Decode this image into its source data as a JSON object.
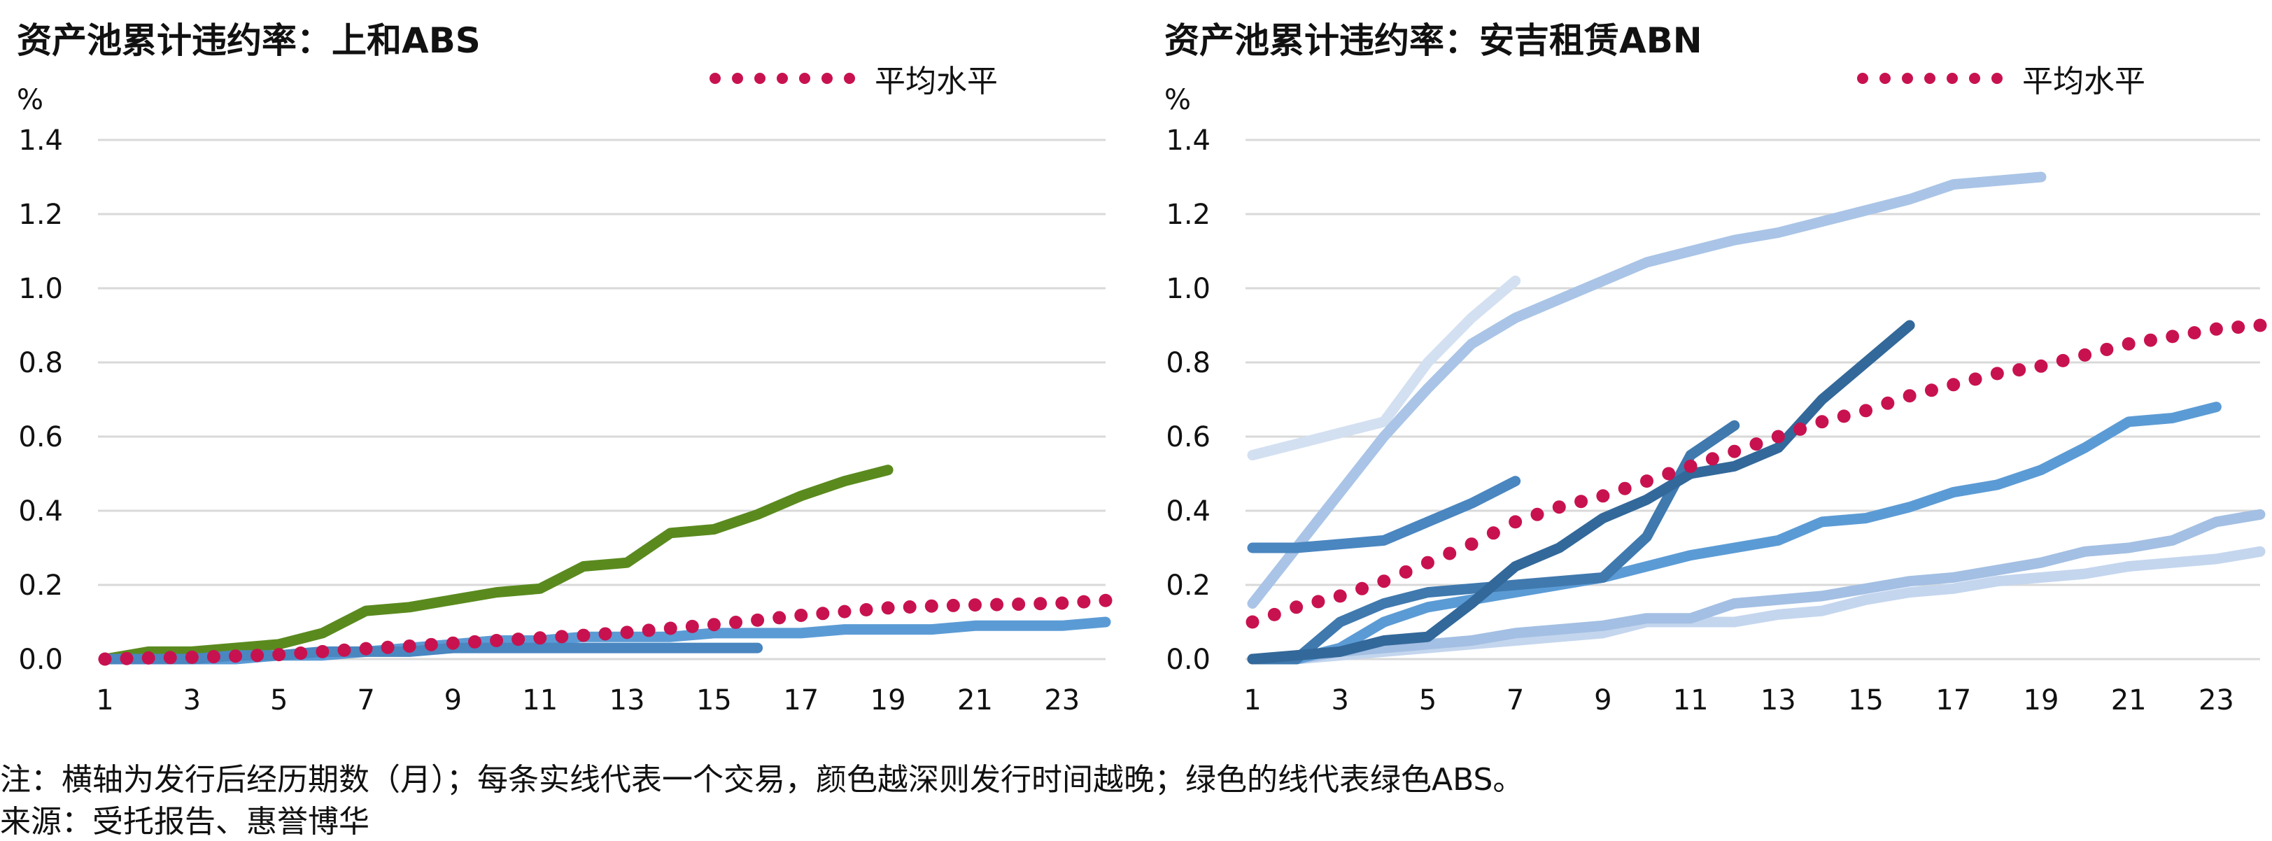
{
  "note": "注：横轴为发行后经历期数（月）；每条实线代表一个交易，颜色越深则发行时间越晚；绿色的线代表绿色ABS。",
  "source": "来源：受托报告、惠誉博华",
  "colors": {
    "average": "#C8124F",
    "green": "#5A8A1E",
    "grid": "#D9D9D9"
  },
  "chart_data": [
    {
      "type": "line",
      "title": "资产池累计违约率：上和ABS",
      "unit_label": "%",
      "legend": {
        "label": "平均水平",
        "placement": "top-right"
      },
      "ylim": [
        0,
        1.4
      ],
      "yticks": [
        "0.0",
        "0.2",
        "0.4",
        "0.6",
        "0.8",
        "1.0",
        "1.2",
        "1.4"
      ],
      "xlim": [
        1,
        24
      ],
      "xticks": [
        "1",
        "3",
        "5",
        "7",
        "9",
        "11",
        "13",
        "15",
        "17",
        "19",
        "21",
        "23"
      ],
      "grid": true,
      "series": [
        {
          "color": "#5A8A1E",
          "style": "solid",
          "x": [
            1,
            2,
            3,
            4,
            5,
            6,
            7,
            8,
            9,
            10,
            11,
            12,
            13,
            14,
            15,
            16,
            17,
            18,
            19
          ],
          "y": [
            0.0,
            0.02,
            0.02,
            0.03,
            0.04,
            0.07,
            0.13,
            0.14,
            0.16,
            0.18,
            0.19,
            0.25,
            0.26,
            0.34,
            0.35,
            0.39,
            0.44,
            0.48,
            0.51
          ]
        },
        {
          "color": "#5B9BD5",
          "style": "solid",
          "x": [
            1,
            2,
            3,
            4,
            5,
            6,
            7,
            8,
            9,
            10,
            11,
            12,
            13,
            14,
            15,
            16,
            17,
            18,
            19,
            20,
            21,
            22,
            23,
            24
          ],
          "y": [
            0.0,
            0.0,
            0.0,
            0.0,
            0.01,
            0.01,
            0.02,
            0.03,
            0.04,
            0.05,
            0.05,
            0.06,
            0.06,
            0.06,
            0.07,
            0.07,
            0.07,
            0.08,
            0.08,
            0.08,
            0.09,
            0.09,
            0.09,
            0.1
          ]
        },
        {
          "color": "#4A86C0",
          "style": "solid",
          "x": [
            1,
            2,
            3,
            4,
            5,
            6,
            7,
            8,
            9,
            10,
            11,
            12,
            13,
            14,
            15,
            16
          ],
          "y": [
            0.0,
            0.0,
            0.0,
            0.01,
            0.01,
            0.02,
            0.02,
            0.02,
            0.03,
            0.03,
            0.03,
            0.03,
            0.03,
            0.03,
            0.03,
            0.03
          ]
        },
        {
          "color": "#C8124F",
          "style": "dotted",
          "x": [
            1,
            2,
            3,
            4,
            5,
            6,
            7,
            8,
            9,
            10,
            11,
            12,
            13,
            14,
            15,
            16,
            17,
            18,
            19,
            20,
            21,
            22,
            23,
            24
          ],
          "y": [
            0.0,
            0.003,
            0.005,
            0.008,
            0.012,
            0.02,
            0.028,
            0.035,
            0.043,
            0.05,
            0.057,
            0.064,
            0.072,
            0.083,
            0.093,
            0.105,
            0.118,
            0.128,
            0.138,
            0.143,
            0.146,
            0.148,
            0.151,
            0.158
          ]
        }
      ]
    },
    {
      "type": "line",
      "title": "资产池累计违约率：安吉租赁ABN",
      "unit_label": "%",
      "legend": {
        "label": "平均水平",
        "placement": "top-right"
      },
      "ylim": [
        0,
        1.4
      ],
      "yticks": [
        "0.0",
        "0.2",
        "0.4",
        "0.6",
        "0.8",
        "1.0",
        "1.2",
        "1.4"
      ],
      "xlim": [
        1,
        24
      ],
      "xticks": [
        "1",
        "3",
        "5",
        "7",
        "9",
        "11",
        "13",
        "15",
        "17",
        "19",
        "21",
        "23"
      ],
      "grid": true,
      "series": [
        {
          "color": "#D3E0F1",
          "style": "solid",
          "x": [
            1,
            2,
            3,
            4,
            5,
            6,
            7
          ],
          "y": [
            0.55,
            0.58,
            0.61,
            0.64,
            0.8,
            0.92,
            1.02
          ]
        },
        {
          "color": "#A9C4E6",
          "style": "solid",
          "x": [
            1,
            2,
            3,
            4,
            5,
            6,
            7,
            8,
            9,
            10,
            11,
            12,
            13,
            14,
            15,
            16,
            17,
            18,
            19
          ],
          "y": [
            0.15,
            0.3,
            0.45,
            0.6,
            0.73,
            0.85,
            0.92,
            0.97,
            1.02,
            1.07,
            1.1,
            1.13,
            1.15,
            1.18,
            1.21,
            1.24,
            1.28,
            1.29,
            1.3
          ]
        },
        {
          "color": "#C4D6EE",
          "style": "solid",
          "x": [
            1,
            2,
            3,
            4,
            5,
            6,
            7,
            8,
            9,
            10,
            11,
            12,
            13,
            14,
            15,
            16,
            17,
            18,
            19,
            20,
            21,
            22,
            23,
            24
          ],
          "y": [
            0.0,
            0.0,
            0.01,
            0.02,
            0.03,
            0.04,
            0.05,
            0.06,
            0.07,
            0.1,
            0.1,
            0.1,
            0.12,
            0.13,
            0.16,
            0.18,
            0.19,
            0.21,
            0.22,
            0.23,
            0.25,
            0.26,
            0.27,
            0.29
          ]
        },
        {
          "color": "#A3BFE3",
          "style": "solid",
          "x": [
            1,
            2,
            3,
            4,
            5,
            6,
            7,
            8,
            9,
            10,
            11,
            12,
            13,
            14,
            15,
            16,
            17,
            18,
            19,
            20,
            21,
            22,
            23,
            24
          ],
          "y": [
            0.0,
            0.0,
            0.02,
            0.03,
            0.04,
            0.05,
            0.07,
            0.08,
            0.09,
            0.11,
            0.11,
            0.15,
            0.16,
            0.17,
            0.19,
            0.21,
            0.22,
            0.24,
            0.26,
            0.29,
            0.3,
            0.32,
            0.37,
            0.39
          ]
        },
        {
          "color": "#5B9BD5",
          "style": "solid",
          "x": [
            1,
            2,
            3,
            4,
            5,
            6,
            7,
            8,
            9,
            10,
            11,
            12,
            13,
            14,
            15,
            16,
            17,
            18,
            19,
            20,
            21,
            22,
            23
          ],
          "y": [
            0.0,
            0.0,
            0.03,
            0.1,
            0.14,
            0.16,
            0.18,
            0.2,
            0.22,
            0.25,
            0.28,
            0.3,
            0.32,
            0.37,
            0.38,
            0.41,
            0.45,
            0.47,
            0.51,
            0.57,
            0.64,
            0.65,
            0.68
          ]
        },
        {
          "color": "#4A86C0",
          "style": "solid",
          "x": [
            1,
            2,
            3,
            4,
            5,
            6,
            7
          ],
          "y": [
            0.3,
            0.3,
            0.31,
            0.32,
            0.37,
            0.42,
            0.48
          ]
        },
        {
          "color": "#3F79AE",
          "style": "solid",
          "x": [
            1,
            2,
            3,
            4,
            5,
            6,
            7,
            8,
            9,
            10,
            11,
            12
          ],
          "y": [
            0.0,
            0.0,
            0.1,
            0.15,
            0.18,
            0.19,
            0.2,
            0.21,
            0.22,
            0.33,
            0.55,
            0.63
          ]
        },
        {
          "color": "#33689A",
          "style": "solid",
          "x": [
            1,
            2,
            3,
            4,
            5,
            6,
            7,
            8,
            9,
            10,
            11,
            12,
            13,
            14,
            15,
            16
          ],
          "y": [
            0.0,
            0.01,
            0.02,
            0.05,
            0.06,
            0.15,
            0.25,
            0.3,
            0.38,
            0.43,
            0.5,
            0.52,
            0.57,
            0.7,
            0.8,
            0.9
          ]
        },
        {
          "color": "#C8124F",
          "style": "dotted",
          "x": [
            1,
            2,
            3,
            4,
            5,
            6,
            7,
            8,
            9,
            10,
            11,
            12,
            13,
            14,
            15,
            16,
            17,
            18,
            19,
            20,
            21,
            22,
            23,
            24
          ],
          "y": [
            0.1,
            0.14,
            0.17,
            0.21,
            0.26,
            0.31,
            0.37,
            0.41,
            0.44,
            0.48,
            0.52,
            0.56,
            0.6,
            0.64,
            0.67,
            0.71,
            0.74,
            0.77,
            0.79,
            0.82,
            0.85,
            0.87,
            0.89,
            0.9
          ]
        }
      ]
    }
  ]
}
